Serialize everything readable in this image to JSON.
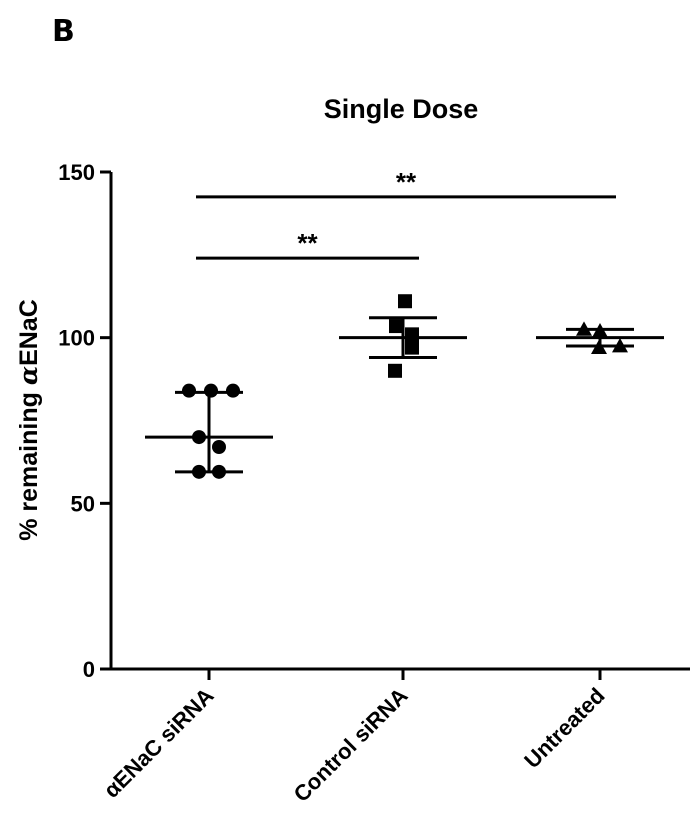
{
  "panel_label": "B",
  "chart_data": {
    "type": "scatter",
    "title": "Single Dose",
    "ylabel": "% remaining αENaC",
    "xlabel": "",
    "ylim": [
      0,
      150
    ],
    "yticks": [
      0,
      50,
      100,
      150
    ],
    "categories": [
      "αENaC siRNA",
      "Control siRNA",
      "Untreated"
    ],
    "groups": [
      {
        "category": "αENaC siRNA",
        "marker": "circle",
        "points": [
          84,
          84,
          84,
          70,
          67,
          59.5,
          59.5
        ],
        "mean": 70,
        "error_low": 59.5,
        "error_high": 83.5
      },
      {
        "category": "Control siRNA",
        "marker": "square",
        "points": [
          111,
          103.5,
          101,
          97,
          90
        ],
        "mean": 100,
        "error_low": 94,
        "error_high": 106
      },
      {
        "category": "Untreated",
        "marker": "triangle",
        "points": [
          102.5,
          102,
          97.5,
          97
        ],
        "mean": 100,
        "error_low": 97.5,
        "error_high": 102.5
      }
    ],
    "significance": [
      {
        "from": "αENaC siRNA",
        "to": "Control siRNA",
        "y": 124,
        "label": "**"
      },
      {
        "from": "αENaC siRNA",
        "to": "Untreated",
        "y": 142.5,
        "label": "**"
      }
    ],
    "grid": false,
    "legend": "none"
  }
}
